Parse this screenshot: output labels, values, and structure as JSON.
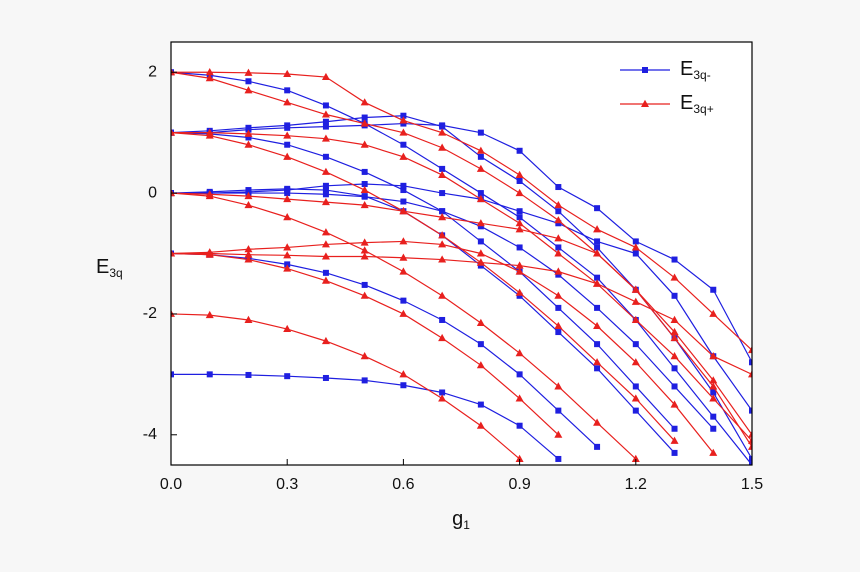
{
  "chart_data": {
    "type": "line",
    "xlabel": "g1",
    "ylabel": "E3q",
    "x": [
      0,
      0.1,
      0.2,
      0.3,
      0.4,
      0.5,
      0.6,
      0.7,
      0.8,
      0.9,
      1.0,
      1.1,
      1.2,
      1.3,
      1.4,
      1.5
    ],
    "xlim": [
      0,
      1.5
    ],
    "ylim": [
      -4.5,
      2.5
    ],
    "xticks": [
      {
        "value": 0,
        "label": "0.0"
      },
      0.3,
      0.6,
      0.9,
      1.2,
      1.5
    ],
    "yticks": [
      -4,
      -2,
      0,
      2
    ],
    "legend": "upper right",
    "series": [
      {
        "name": "E3q-",
        "color": "#1f1fe0",
        "marker": "square",
        "values": [
          [
            -3,
            -3,
            -3.01,
            -3.03,
            -3.06,
            -3.1,
            -3.18,
            -3.3,
            -3.5,
            -3.85,
            -4.4,
            null,
            null,
            null,
            null,
            null
          ],
          [
            -1,
            -1.02,
            -1.08,
            -1.18,
            -1.32,
            -1.52,
            -1.78,
            -2.1,
            -2.5,
            -3,
            -3.6,
            -4.2,
            null,
            null,
            null,
            null
          ],
          [
            0,
            0,
            0,
            0,
            -0.02,
            -0.06,
            -0.14,
            -0.3,
            -0.55,
            -0.9,
            -1.35,
            -1.9,
            -2.5,
            -3.2,
            -3.9,
            null
          ],
          [
            0,
            0.02,
            0.05,
            0.07,
            0.05,
            -0.05,
            -0.3,
            -0.7,
            -1.2,
            -1.7,
            -2.3,
            -2.9,
            -3.6,
            -4.3,
            null,
            null
          ],
          [
            1,
            0.98,
            0.92,
            0.8,
            0.6,
            0.35,
            0.05,
            -0.3,
            -0.8,
            -1.3,
            -1.9,
            -2.5,
            -3.2,
            -3.9,
            null,
            null
          ],
          [
            1,
            1.03,
            1.08,
            1.12,
            1.18,
            1.25,
            1.28,
            1.1,
            0.6,
            0.2,
            -0.3,
            -0.9,
            -1.6,
            -2.4,
            -3.3,
            -4.4
          ],
          [
            2,
            1.95,
            1.85,
            1.7,
            1.45,
            1.15,
            0.8,
            0.4,
            0,
            -0.4,
            -0.9,
            -1.4,
            -2.1,
            -2.9,
            -3.7,
            -4.5
          ],
          [
            1,
            1,
            1.05,
            1.08,
            1.1,
            1.12,
            1.15,
            1.12,
            1,
            0.7,
            0.1,
            -0.25,
            -0.8,
            -1.1,
            -1.6,
            -2.8
          ],
          [
            0,
            0,
            0.02,
            0.05,
            0.12,
            0.15,
            0.12,
            0,
            -0.1,
            -0.3,
            -0.5,
            -0.8,
            -1,
            -1.7,
            -2.7,
            -3.6
          ]
        ]
      },
      {
        "name": "E3q+",
        "color": "#e8201e",
        "marker": "triangle",
        "values": [
          [
            -2,
            -2.02,
            -2.1,
            -2.25,
            -2.45,
            -2.7,
            -3,
            -3.4,
            -3.85,
            -4.4,
            null,
            null,
            null,
            null,
            null,
            null
          ],
          [
            -1,
            -1.02,
            -1.1,
            -1.25,
            -1.45,
            -1.7,
            -2,
            -2.4,
            -2.85,
            -3.4,
            -4,
            null,
            null,
            null,
            null,
            null
          ],
          [
            -1,
            -0.98,
            -0.93,
            -0.9,
            -0.85,
            -0.82,
            -0.8,
            -0.85,
            -1,
            -1.3,
            -1.7,
            -2.2,
            -2.8,
            -3.5,
            -4.3,
            null
          ],
          [
            -1,
            -1,
            -1.02,
            -1.03,
            -1.05,
            -1.05,
            -1.07,
            -1.1,
            -1.15,
            -1.2,
            -1.3,
            -1.5,
            -1.8,
            -2.1,
            -2.7,
            -3
          ],
          [
            0,
            -0.05,
            -0.2,
            -0.4,
            -0.65,
            -0.95,
            -1.3,
            -1.7,
            -2.15,
            -2.65,
            -3.2,
            -3.8,
            -4.4,
            null,
            null,
            null
          ],
          [
            1,
            0.95,
            0.8,
            0.6,
            0.35,
            0.05,
            -0.3,
            -0.7,
            -1.15,
            -1.65,
            -2.2,
            -2.8,
            -3.4,
            -4.1,
            null,
            null
          ],
          [
            1,
            1,
            0.98,
            0.95,
            0.9,
            0.8,
            0.6,
            0.3,
            -0.1,
            -0.5,
            -1,
            -1.5,
            -2.1,
            -2.7,
            -3.4,
            -4.1
          ],
          [
            2,
            1.9,
            1.7,
            1.5,
            1.3,
            1.15,
            1,
            0.75,
            0.4,
            0,
            -0.45,
            -1,
            -1.6,
            -2.3,
            -3.1,
            -4
          ],
          [
            2,
            2,
            1.99,
            1.97,
            1.92,
            1.5,
            1.2,
            1,
            0.7,
            0.3,
            -0.2,
            -0.6,
            -0.9,
            -1.4,
            -2,
            -2.6
          ],
          [
            0,
            -0.02,
            -0.05,
            -0.1,
            -0.15,
            -0.2,
            -0.3,
            -0.4,
            -0.5,
            -0.6,
            -0.75,
            -1,
            -1.6,
            -2.4,
            -3.2,
            -4.2
          ]
        ]
      }
    ]
  }
}
